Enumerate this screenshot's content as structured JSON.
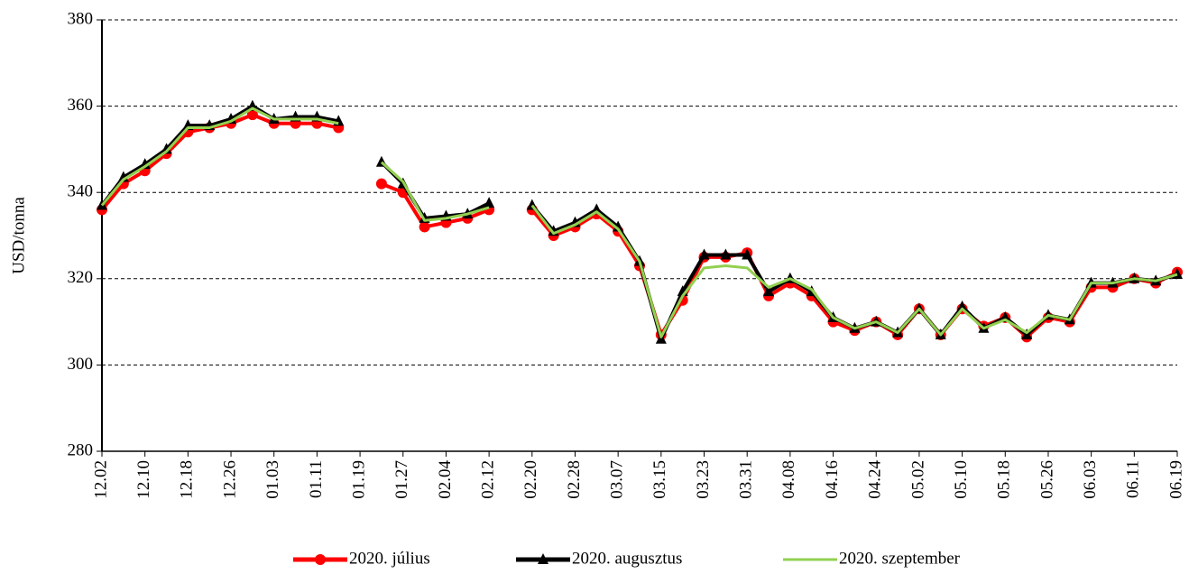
{
  "chart_data": {
    "type": "line",
    "ylabel": "USD/tonna",
    "categories": [
      "12.02",
      null,
      "12.10",
      null,
      "12.18",
      null,
      "12.26",
      null,
      "01.03",
      null,
      "01.11",
      null,
      "01.19",
      null,
      "01.27",
      null,
      "02.04",
      null,
      "02.12",
      null,
      "02.20",
      null,
      "02.28",
      null,
      "03.07",
      null,
      "03.15",
      null,
      "03.23",
      null,
      "03.31",
      null,
      "04.08",
      null,
      "04.16",
      null,
      "04.24",
      null,
      "05.02",
      null,
      "05.10",
      null,
      "05.18",
      null,
      "05.26",
      null,
      "06.03",
      null,
      "06.11",
      null,
      "06.19"
    ],
    "series": [
      {
        "name": "2020. július",
        "color": "#ff0000",
        "marker": "circle",
        "values": [
          336,
          342,
          345,
          349,
          354,
          355,
          356,
          358,
          356,
          356,
          356,
          355,
          null,
          342,
          340,
          332,
          333,
          334,
          336,
          null,
          336,
          330,
          332,
          335,
          331,
          323,
          307,
          315,
          325,
          325,
          326,
          316,
          319,
          316,
          310,
          308,
          310,
          307,
          313,
          307,
          313,
          309,
          311,
          306.5,
          311,
          310,
          318,
          318,
          320,
          319,
          321.5
        ]
      },
      {
        "name": "2020. augusztus",
        "color": "#000000",
        "marker": "triangle",
        "values": [
          337,
          343.5,
          346.5,
          350,
          355.5,
          355.5,
          357,
          360,
          357,
          357.5,
          357.5,
          356.5,
          null,
          347,
          342,
          334,
          334.5,
          335,
          337.5,
          null,
          337,
          331,
          333,
          336,
          332,
          324,
          306,
          317,
          325.5,
          325.5,
          325.5,
          317,
          320,
          317,
          311,
          308.5,
          310,
          307.5,
          313,
          307,
          313.5,
          308.5,
          311,
          307,
          311.5,
          310.5,
          319,
          319,
          320,
          319.5,
          321
        ]
      },
      {
        "name": "2020. szeptember",
        "color": "#92d050",
        "marker": "none",
        "values": [
          337,
          343,
          346,
          349.5,
          355,
          355,
          356.5,
          359.5,
          357,
          357,
          357,
          356,
          null,
          347,
          342.5,
          333.5,
          334,
          335,
          336.5,
          null,
          337,
          330.5,
          332.5,
          335.5,
          331.5,
          324,
          306.5,
          316,
          322.5,
          323,
          322.5,
          318,
          320,
          317.5,
          311,
          308.5,
          310,
          307.5,
          313,
          307,
          313,
          308.5,
          310.5,
          307.5,
          311.5,
          310.5,
          319,
          319,
          320,
          319.5,
          321
        ]
      }
    ],
    "ylim": [
      280,
      380
    ],
    "yticks": [
      280,
      300,
      320,
      340,
      360,
      380
    ],
    "grid": true,
    "legend": "bottom"
  }
}
